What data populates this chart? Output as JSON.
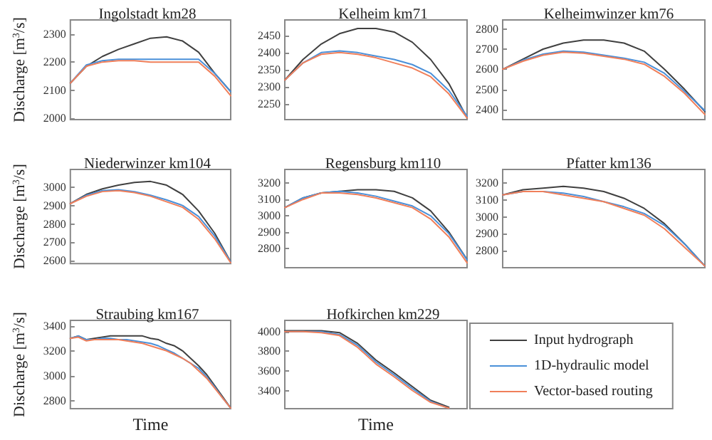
{
  "chart_data": [
    {
      "type": "line",
      "title": "Ingolstadt km28",
      "ylabel": "Discharge [m$^{3}$/s]",
      "categories": [
        null,
        null,
        null,
        null,
        null,
        null,
        null,
        null,
        null,
        null,
        null
      ],
      "ylim": [
        1995,
        2350
      ],
      "yticks": [
        2000,
        2100,
        2200,
        2300
      ],
      "grid": false,
      "legend": false,
      "series": [
        {
          "color": "#404040",
          "values": [
            2125,
            2185,
            2220,
            2245,
            2265,
            2285,
            2290,
            2275,
            2235,
            2160,
            2095
          ]
        },
        {
          "color": "#4a90d9",
          "values": [
            2125,
            2190,
            2205,
            2210,
            2210,
            2210,
            2210,
            2210,
            2210,
            2160,
            2095
          ]
        },
        {
          "color": "#f07f5a",
          "values": [
            2125,
            2185,
            2200,
            2205,
            2205,
            2200,
            2200,
            2200,
            2200,
            2150,
            2080
          ]
        }
      ]
    },
    {
      "type": "line",
      "title": "Kelheim km71",
      "categories": [
        null,
        null,
        null,
        null,
        null,
        null,
        null,
        null,
        null,
        null,
        null
      ],
      "ylim": [
        2205,
        2495
      ],
      "yticks": [
        2250,
        2300,
        2350,
        2400,
        2450
      ],
      "grid": false,
      "legend": false,
      "series": [
        {
          "color": "#404040",
          "values": [
            2320,
            2380,
            2425,
            2455,
            2470,
            2470,
            2460,
            2430,
            2380,
            2310,
            2210
          ]
        },
        {
          "color": "#4a90d9",
          "values": [
            2320,
            2370,
            2400,
            2405,
            2400,
            2390,
            2380,
            2365,
            2340,
            2290,
            2215
          ]
        },
        {
          "color": "#f07f5a",
          "values": [
            2320,
            2370,
            2395,
            2400,
            2395,
            2385,
            2370,
            2355,
            2330,
            2280,
            2210
          ]
        }
      ]
    },
    {
      "type": "line",
      "title": "Kelheimwinzer km76",
      "categories": [
        null,
        null,
        null,
        null,
        null,
        null,
        null,
        null,
        null,
        null,
        null
      ],
      "ylim": [
        2350,
        2845
      ],
      "yticks": [
        2400,
        2500,
        2600,
        2700,
        2800
      ],
      "grid": false,
      "legend": false,
      "series": [
        {
          "color": "#404040",
          "values": [
            2600,
            2650,
            2700,
            2730,
            2745,
            2745,
            2730,
            2690,
            2600,
            2500,
            2390
          ]
        },
        {
          "color": "#4a90d9",
          "values": [
            2600,
            2645,
            2675,
            2690,
            2685,
            2670,
            2655,
            2635,
            2580,
            2490,
            2395
          ]
        },
        {
          "color": "#f07f5a",
          "values": [
            2600,
            2640,
            2670,
            2685,
            2680,
            2665,
            2650,
            2625,
            2565,
            2480,
            2375
          ]
        }
      ]
    },
    {
      "type": "line",
      "title": "Niederwinzer km104",
      "ylabel": "Discharge [m$^{3}$/s]",
      "categories": [
        null,
        null,
        null,
        null,
        null,
        null,
        null,
        null,
        null,
        null,
        null
      ],
      "ylim": [
        2585,
        3095
      ],
      "yticks": [
        2600,
        2700,
        2800,
        2900,
        3000
      ],
      "grid": false,
      "legend": false,
      "series": [
        {
          "color": "#404040",
          "values": [
            2910,
            2960,
            2990,
            3010,
            3025,
            3030,
            3010,
            2960,
            2870,
            2750,
            2595
          ]
        },
        {
          "color": "#4a90d9",
          "values": [
            2910,
            2955,
            2980,
            2985,
            2975,
            2955,
            2930,
            2900,
            2840,
            2735,
            2595
          ]
        },
        {
          "color": "#f07f5a",
          "values": [
            2910,
            2950,
            2975,
            2980,
            2970,
            2950,
            2920,
            2890,
            2825,
            2720,
            2590
          ]
        }
      ]
    },
    {
      "type": "line",
      "title": "Regensburg km110",
      "categories": [
        null,
        null,
        null,
        null,
        null,
        null,
        null,
        null,
        null,
        null,
        null
      ],
      "ylim": [
        2680,
        3285
      ],
      "yticks": [
        2800,
        2900,
        3000,
        3100,
        3200
      ],
      "grid": false,
      "legend": false,
      "series": [
        {
          "color": "#404040",
          "values": [
            3050,
            3110,
            3140,
            3150,
            3160,
            3160,
            3150,
            3110,
            3030,
            2900,
            2730
          ]
        },
        {
          "color": "#4a90d9",
          "values": [
            3050,
            3110,
            3140,
            3150,
            3140,
            3120,
            3090,
            3060,
            3000,
            2890,
            2730
          ]
        },
        {
          "color": "#f07f5a",
          "values": [
            3050,
            3100,
            3140,
            3140,
            3130,
            3110,
            3080,
            3050,
            2980,
            2870,
            2710
          ]
        }
      ]
    },
    {
      "type": "line",
      "title": "Pfatter km136",
      "categories": [
        null,
        null,
        null,
        null,
        null,
        null,
        null,
        null,
        null,
        null,
        null
      ],
      "ylim": [
        2700,
        3280
      ],
      "yticks": [
        2800,
        2900,
        3000,
        3100,
        3200
      ],
      "grid": false,
      "legend": false,
      "series": [
        {
          "color": "#404040",
          "values": [
            3130,
            3160,
            3170,
            3180,
            3170,
            3150,
            3110,
            3050,
            2960,
            2840,
            2710
          ]
        },
        {
          "color": "#4a90d9",
          "values": [
            3130,
            3150,
            3150,
            3140,
            3120,
            3090,
            3060,
            3020,
            2950,
            2840,
            2710
          ]
        },
        {
          "color": "#f07f5a",
          "values": [
            3130,
            3150,
            3150,
            3130,
            3110,
            3090,
            3050,
            3010,
            2930,
            2820,
            2710
          ]
        }
      ]
    },
    {
      "type": "line",
      "title": "Straubing km167",
      "ylabel": "Discharge [m$^{3}$/s]",
      "xlabel": "Time",
      "categories": [
        null,
        null,
        null,
        null,
        null,
        null,
        null,
        null,
        null,
        null,
        null,
        null,
        null,
        null,
        null,
        null,
        null,
        null,
        null,
        null,
        null
      ],
      "ylim": [
        2735,
        3445
      ],
      "yticks": [
        2800,
        3000,
        3200,
        3400
      ],
      "grid": false,
      "legend": false,
      "series": [
        {
          "color": "#404040",
          "values": [
            3300,
            3320,
            3290,
            3300,
            3310,
            3320,
            3320,
            3320,
            3320,
            3320,
            3300,
            3290,
            3260,
            3240,
            3200,
            3140,
            3080,
            3010,
            2920,
            2830,
            2740
          ]
        },
        {
          "color": "#4a90d9",
          "values": [
            3300,
            3320,
            3290,
            3290,
            3300,
            3300,
            3290,
            3290,
            3280,
            3270,
            3260,
            3240,
            3210,
            3180,
            3140,
            3100,
            3060,
            2990,
            2910,
            2820,
            2740
          ]
        },
        {
          "color": "#f07f5a",
          "values": [
            3300,
            3310,
            3280,
            3290,
            3290,
            3290,
            3290,
            3280,
            3270,
            3260,
            3240,
            3220,
            3200,
            3170,
            3140,
            3100,
            3040,
            2980,
            2900,
            2820,
            2740
          ]
        }
      ]
    },
    {
      "type": "line",
      "title": "Hofkirchen km229",
      "xlabel": "Time",
      "categories": [
        null,
        null,
        null,
        null,
        null,
        null,
        null,
        null,
        null,
        null,
        null
      ],
      "ylim": [
        3215,
        4115
      ],
      "yticks": [
        3400,
        3600,
        3800,
        4000
      ],
      "grid": false,
      "legend": "right",
      "series": [
        {
          "name": "Input hydrograph",
          "color": "#404040",
          "values": [
            4010,
            4010,
            4010,
            3990,
            3880,
            3710,
            3580,
            3440,
            3300,
            3230,
            null
          ]
        },
        {
          "name": "1D-hydraulic model",
          "color": "#4a90d9",
          "values": [
            4000,
            4000,
            4000,
            3970,
            3860,
            3690,
            3560,
            3420,
            3290,
            3220,
            null
          ]
        },
        {
          "name": "Vector-based routing",
          "color": "#f07f5a",
          "values": [
            4000,
            4000,
            3990,
            3960,
            3840,
            3670,
            3540,
            3400,
            3280,
            3220,
            null
          ]
        }
      ]
    }
  ]
}
